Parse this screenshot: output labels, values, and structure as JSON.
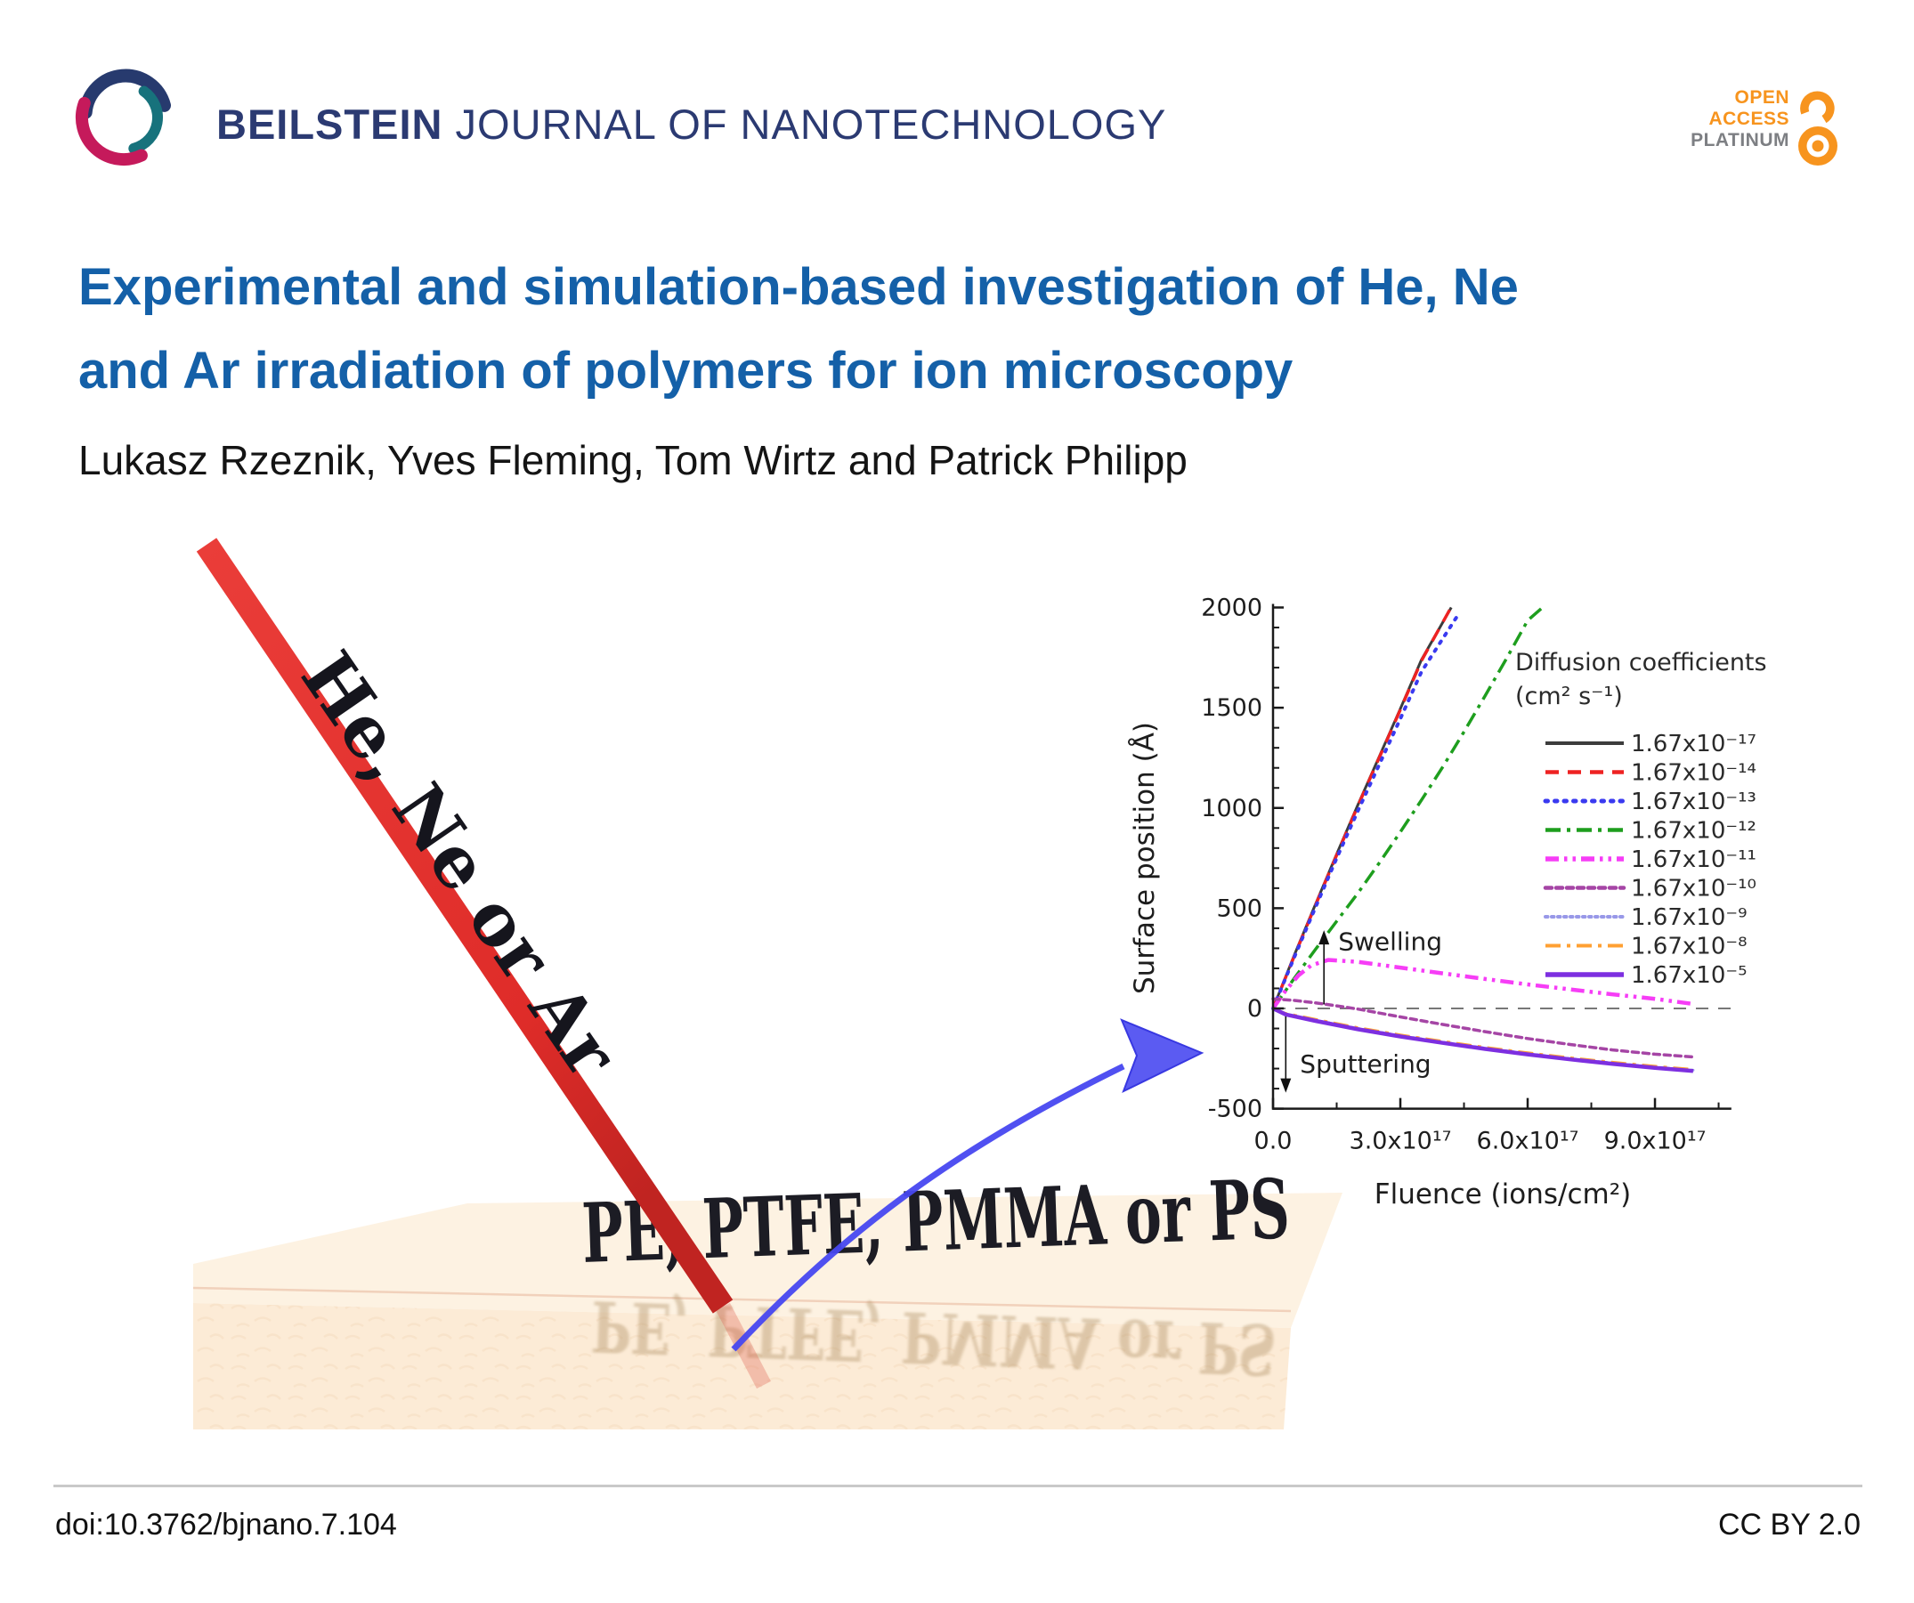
{
  "header": {
    "journal_bold": "BEILSTEIN",
    "journal_rest": " JOURNAL OF NANOTECHNOLOGY",
    "badge_line1": "OPEN",
    "badge_line2": "ACCESS",
    "badge_line3": "PLATINUM"
  },
  "article": {
    "title_line1": "Experimental and simulation-based investigation of He, Ne",
    "title_line2": "and Ar irradiation of polymers for ion microscopy",
    "authors": "Lukasz Rzeznik, Yves Fleming, Tom Wirtz and Patrick Philipp"
  },
  "graphic": {
    "beam_label": "He, Ne or Ar",
    "substrate_label": "PE, PTFE, PMMA or PS",
    "beam_color": "#e03231",
    "arrow_color": "#4747f0",
    "substrate_color": "#fcebd6"
  },
  "chart_data": {
    "type": "line",
    "title": "",
    "xlabel": "Fluence (ions/cm²)",
    "ylabel": "Surface position (Å)",
    "xlim_1e17": [
      0,
      10.8
    ],
    "ylim": [
      -500,
      2000
    ],
    "grid": false,
    "legend_position": "upper right",
    "legend_title_line1": "Diffusion coefficients",
    "legend_title_line2": "(cm² s⁻¹)",
    "x_ticks": [
      {
        "label": "0.0",
        "value_1e17": 0
      },
      {
        "label": "3.0x10¹⁷",
        "value_1e17": 3
      },
      {
        "label": "6.0x10¹⁷",
        "value_1e17": 6
      },
      {
        "label": "9.0x10¹⁷",
        "value_1e17": 9
      }
    ],
    "x_minor_ticks_1e17": [
      1.5,
      4.5,
      7.5,
      10.5
    ],
    "y_ticks": [
      -500,
      0,
      500,
      1000,
      1500,
      2000
    ],
    "zero_line": true,
    "annotations": [
      {
        "text": "Swelling",
        "arrow": "up",
        "x_1e17": 1.2,
        "arrow_y_from": 20,
        "arrow_y_to": 390,
        "label_y": 330
      },
      {
        "text": "Sputtering",
        "arrow": "down",
        "x_1e17": 0.3,
        "arrow_y_from": -40,
        "arrow_y_to": -420,
        "label_y": -280
      }
    ],
    "series": [
      {
        "label": "1.67x10⁻¹⁷",
        "color": "#3c3c3c",
        "style": "solid",
        "width": 3,
        "x_1e17": [
          0,
          0.5,
          1,
          1.5,
          2,
          2.5,
          3,
          3.5,
          4.2
        ],
        "y": [
          0,
          265,
          520,
          770,
          1015,
          1255,
          1495,
          1740,
          2000
        ]
      },
      {
        "label": "1.67x10⁻¹⁴",
        "color": "#ee2222",
        "style": "dashed",
        "width": 3.5,
        "x_1e17": [
          0,
          0.5,
          1,
          1.5,
          2,
          2.5,
          3,
          3.5,
          4.18
        ],
        "y": [
          0,
          260,
          515,
          765,
          1010,
          1250,
          1490,
          1735,
          1995
        ]
      },
      {
        "label": "1.67x10⁻¹³",
        "color": "#3a3af0",
        "style": "dotted",
        "width": 4,
        "x_1e17": [
          0,
          0.5,
          1,
          1.5,
          2,
          2.5,
          3,
          3.5,
          4.35
        ],
        "y": [
          0,
          255,
          505,
          750,
          985,
          1215,
          1445,
          1680,
          1960
        ]
      },
      {
        "label": "1.67x10⁻¹²",
        "color": "#1e9e1e",
        "style": "dashdot",
        "width": 3.5,
        "x_1e17": [
          0,
          0.5,
          1,
          1.5,
          2,
          2.5,
          3,
          3.5,
          4,
          4.5,
          5,
          5.5,
          6,
          6.35
        ],
        "y": [
          0,
          150,
          295,
          435,
          575,
          725,
          880,
          1040,
          1205,
          1380,
          1560,
          1745,
          1935,
          2000
        ]
      },
      {
        "label": "1.67x10⁻¹¹",
        "color": "#f63df6",
        "style": "dashdotdot",
        "width": 4.5,
        "x_1e17": [
          0,
          0.3,
          0.6,
          0.9,
          1.3,
          2,
          3,
          4,
          5,
          6,
          7,
          8,
          9,
          9.9
        ],
        "y": [
          0,
          90,
          165,
          215,
          242,
          232,
          204,
          175,
          147,
          120,
          95,
          70,
          48,
          22
        ]
      },
      {
        "label": "1.67x10⁻¹⁰",
        "color": "#a545a5",
        "style": "densedash",
        "width": 3.5,
        "x_1e17": [
          0,
          0.5,
          1,
          1.5,
          2,
          3,
          4,
          5,
          6,
          7,
          8,
          9,
          9.9
        ],
        "y": [
          48,
          40,
          28,
          13,
          -3,
          -42,
          -80,
          -116,
          -150,
          -180,
          -207,
          -228,
          -242
        ]
      },
      {
        "label": "1.67x10⁻⁹",
        "color": "#9898e8",
        "style": "finedot",
        "width": 3,
        "x_1e17": [
          0,
          0.3,
          1,
          2,
          3,
          4,
          5,
          6,
          7,
          8,
          9,
          9.9
        ],
        "y": [
          0,
          -28,
          -58,
          -100,
          -136,
          -168,
          -198,
          -225,
          -250,
          -272,
          -292,
          -308
        ]
      },
      {
        "label": "1.67x10⁻⁸",
        "color": "#ffa033",
        "style": "dashdot",
        "width": 3,
        "x_1e17": [
          0,
          0.3,
          1,
          2,
          3,
          4,
          5,
          6,
          7,
          8,
          9,
          9.9
        ],
        "y": [
          0,
          -25,
          -54,
          -96,
          -132,
          -164,
          -194,
          -221,
          -246,
          -268,
          -288,
          -304
        ]
      },
      {
        "label": "1.67x10⁻⁵",
        "color": "#7d2fe0",
        "style": "solid",
        "width": 4.5,
        "x_1e17": [
          0,
          0.3,
          1,
          2,
          3,
          4,
          5,
          6,
          7,
          8,
          9,
          9.9
        ],
        "y": [
          0,
          -30,
          -62,
          -104,
          -140,
          -172,
          -202,
          -229,
          -254,
          -276,
          -296,
          -312
        ]
      }
    ]
  },
  "footer": {
    "doi": "doi:10.3762/bjnano.7.104",
    "license": "CC BY 2.0"
  }
}
